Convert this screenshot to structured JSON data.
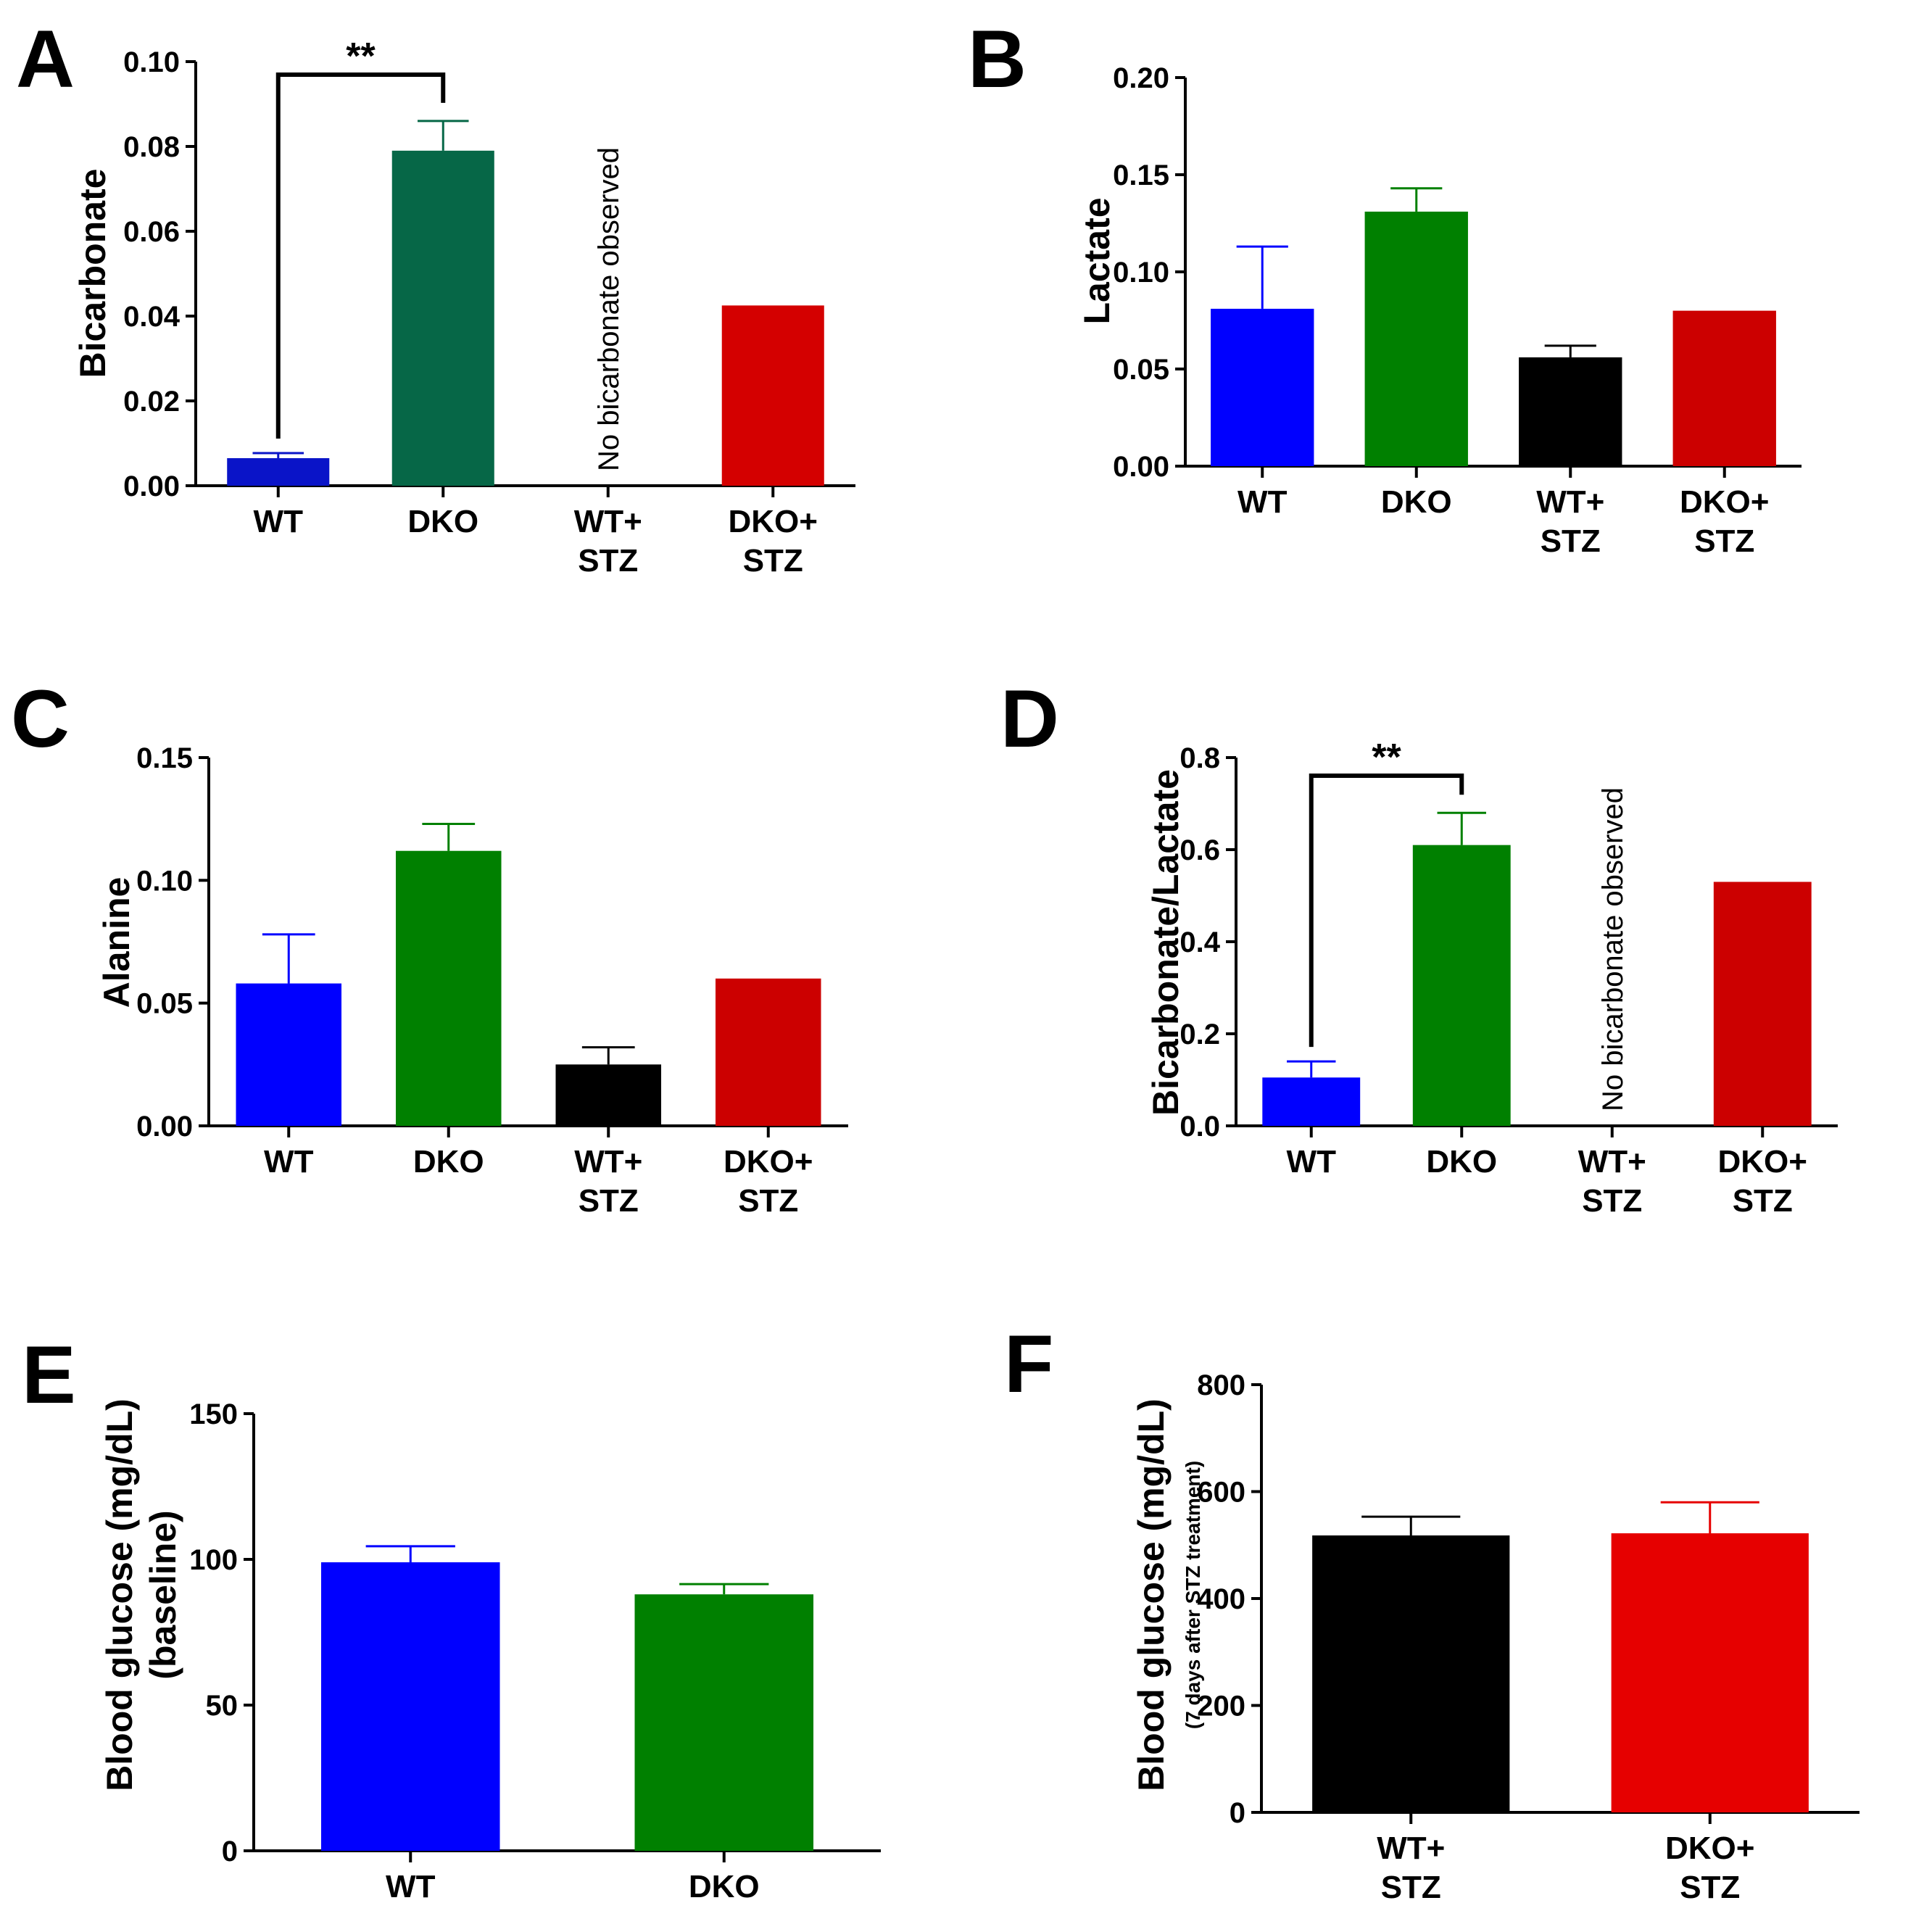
{
  "chart_data": [
    {
      "panel": "A",
      "type": "bar",
      "ylabel": "Bicarbonate",
      "ylim": [
        0,
        0.1
      ],
      "yticks": [
        "0.00",
        "0.02",
        "0.04",
        "0.06",
        "0.08",
        "0.10"
      ],
      "categories": [
        [
          "WT"
        ],
        [
          "DKO"
        ],
        [
          "WT+",
          "STZ"
        ],
        [
          "DKO+",
          "STZ"
        ]
      ],
      "values": [
        0.0065,
        0.079,
        null,
        0.0425
      ],
      "errors": [
        0.0012,
        0.007,
        null,
        null
      ],
      "colors": [
        "#0a14c8",
        "#066747",
        "#000000",
        "#d40000"
      ],
      "annotation": "No bicarbonate observed",
      "annotation_index": 2,
      "significance": {
        "between": [
          0,
          1
        ],
        "label": "**"
      }
    },
    {
      "panel": "B",
      "type": "bar",
      "ylabel": "Lactate",
      "ylim": [
        0,
        0.2
      ],
      "yticks": [
        "0.00",
        "0.05",
        "0.10",
        "0.15",
        "0.20"
      ],
      "categories": [
        [
          "WT"
        ],
        [
          "DKO"
        ],
        [
          "WT+",
          "STZ"
        ],
        [
          "DKO+",
          "STZ"
        ]
      ],
      "values": [
        0.081,
        0.131,
        0.056,
        0.08
      ],
      "errors": [
        0.032,
        0.012,
        0.006,
        null
      ],
      "colors": [
        "#0000ff",
        "#008000",
        "#000000",
        "#cc0000"
      ]
    },
    {
      "panel": "C",
      "type": "bar",
      "ylabel": "Alanine",
      "ylim": [
        0,
        0.15
      ],
      "yticks": [
        "0.00",
        "0.05",
        "0.10",
        "0.15"
      ],
      "categories": [
        [
          "WT"
        ],
        [
          "DKO"
        ],
        [
          "WT+",
          "STZ"
        ],
        [
          "DKO+",
          "STZ"
        ]
      ],
      "values": [
        0.058,
        0.112,
        0.025,
        0.06
      ],
      "errors": [
        0.02,
        0.011,
        0.007,
        null
      ],
      "colors": [
        "#0000ff",
        "#008000",
        "#000000",
        "#cc0000"
      ]
    },
    {
      "panel": "D",
      "type": "bar",
      "ylabel": "Bicarbonate/Lactate",
      "ylim": [
        0,
        0.8
      ],
      "yticks": [
        "0.0",
        "0.2",
        "0.4",
        "0.6",
        "0.8"
      ],
      "categories": [
        [
          "WT"
        ],
        [
          "DKO"
        ],
        [
          "WT+",
          "STZ"
        ],
        [
          "DKO+",
          "STZ"
        ]
      ],
      "values": [
        0.105,
        0.61,
        null,
        0.53
      ],
      "errors": [
        0.035,
        0.07,
        null,
        null
      ],
      "colors": [
        "#0000ff",
        "#008000",
        "#000000",
        "#cc0000"
      ],
      "annotation": "No bicarbonate observed",
      "annotation_index": 2,
      "significance": {
        "between": [
          0,
          1
        ],
        "label": "**"
      }
    },
    {
      "panel": "E",
      "type": "bar",
      "ylabel": "Blood glucose (mg/dL)",
      "ylabel2": "(baseline)",
      "ylim": [
        0,
        150
      ],
      "yticks": [
        "0",
        "50",
        "100",
        "150"
      ],
      "categories": [
        [
          "WT"
        ],
        [
          "DKO"
        ]
      ],
      "values": [
        99,
        88
      ],
      "errors": [
        5.5,
        3.5
      ],
      "colors": [
        "#0000ff",
        "#008000"
      ]
    },
    {
      "panel": "F",
      "type": "bar",
      "ylabel": "Blood glucose (mg/dL)",
      "ylabel2": "(7 days after STZ treatment)",
      "ylim": [
        0,
        800
      ],
      "yticks": [
        "0",
        "200",
        "400",
        "600",
        "800"
      ],
      "categories": [
        [
          "WT+",
          "STZ"
        ],
        [
          "DKO+",
          "STZ"
        ]
      ],
      "values": [
        518,
        522
      ],
      "errors": [
        35,
        58
      ],
      "colors": [
        "#000000",
        "#e60000"
      ]
    }
  ]
}
